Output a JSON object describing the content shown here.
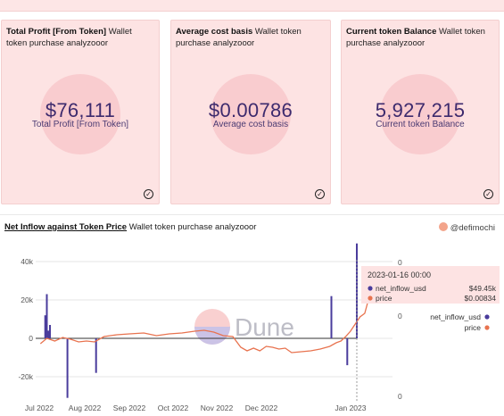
{
  "cards": [
    {
      "title": "Total Profit [From Token]",
      "subtitle": "Wallet token purchase analyzooor",
      "value": "$76,111",
      "label": "Total Profit [From Token]"
    },
    {
      "title": "Average cost basis",
      "subtitle": "Wallet token purchase analyzooor",
      "value": "$0.00786",
      "label": "Average cost basis"
    },
    {
      "title": "Current token Balance",
      "subtitle": "Wallet token purchase analyzooor",
      "value": "5,927,215",
      "label": "Current token Balance"
    }
  ],
  "chart_header": {
    "title": "Net Inflow against Token Price",
    "subtitle": "Wallet token purchase analyzooor",
    "brand": "@defimochi",
    "watermark": "Dune"
  },
  "colors": {
    "bar": "#4a3c9c",
    "line": "#e8734f",
    "card_bg": "#fde3e3"
  },
  "tooltip": {
    "date": "2023-01-16 00:00",
    "rows": [
      {
        "name": "net_inflow_usd",
        "value": "$49.45k"
      },
      {
        "name": "price",
        "value": "$0.00834"
      }
    ]
  },
  "chart_data": {
    "type": "bar",
    "title": "Net Inflow against Token Price",
    "x_ticks": [
      "Jul 2022",
      "Aug 2022",
      "Sep 2022",
      "Oct 2022",
      "Nov 2022",
      "Dec 2022",
      "Jan 2023"
    ],
    "y_ticks": [
      "40k",
      "20k",
      "0",
      "-20k"
    ],
    "y2_ticks": [
      "0",
      "0",
      "0"
    ],
    "ylim": [
      -31000,
      49450
    ],
    "legend": [
      "net_inflow_usd",
      "price"
    ],
    "legend_position": "right",
    "series": [
      {
        "name": "net_inflow_usd",
        "type": "bar",
        "points": [
          {
            "x": "2022-07-04",
            "y": 12000
          },
          {
            "x": "2022-07-05",
            "y": 23000
          },
          {
            "x": "2022-07-06",
            "y": 4000
          },
          {
            "x": "2022-07-07",
            "y": 7000
          },
          {
            "x": "2022-07-18",
            "y": -31000
          },
          {
            "x": "2022-08-05",
            "y": -18000
          },
          {
            "x": "2022-12-31",
            "y": 22000
          },
          {
            "x": "2023-01-10",
            "y": -14000
          },
          {
            "x": "2023-01-16",
            "y": 49450
          }
        ]
      },
      {
        "name": "price",
        "type": "line",
        "points": [
          {
            "x": "2022-07-01",
            "y": -6
          },
          {
            "x": "2022-07-05",
            "y": 0
          },
          {
            "x": "2022-07-10",
            "y": -3
          },
          {
            "x": "2022-07-15",
            "y": 1
          },
          {
            "x": "2022-07-20",
            "y": -1
          },
          {
            "x": "2022-07-25",
            "y": -4
          },
          {
            "x": "2022-07-30",
            "y": -3
          },
          {
            "x": "2022-08-04",
            "y": -4
          },
          {
            "x": "2022-08-10",
            "y": 2
          },
          {
            "x": "2022-08-18",
            "y": 4
          },
          {
            "x": "2022-08-26",
            "y": 5
          },
          {
            "x": "2022-09-04",
            "y": 6
          },
          {
            "x": "2022-09-12",
            "y": 3
          },
          {
            "x": "2022-09-20",
            "y": 5
          },
          {
            "x": "2022-09-28",
            "y": 6
          },
          {
            "x": "2022-10-06",
            "y": 8
          },
          {
            "x": "2022-10-12",
            "y": 9
          },
          {
            "x": "2022-10-18",
            "y": 7
          },
          {
            "x": "2022-10-24",
            "y": 3
          },
          {
            "x": "2022-10-30",
            "y": 2
          },
          {
            "x": "2022-11-04",
            "y": -10
          },
          {
            "x": "2022-11-08",
            "y": -14
          },
          {
            "x": "2022-11-12",
            "y": -11
          },
          {
            "x": "2022-11-16",
            "y": -14
          },
          {
            "x": "2022-11-20",
            "y": -9
          },
          {
            "x": "2022-11-24",
            "y": -10
          },
          {
            "x": "2022-11-28",
            "y": -12
          },
          {
            "x": "2022-12-02",
            "y": -11
          },
          {
            "x": "2022-12-06",
            "y": -16
          },
          {
            "x": "2022-12-12",
            "y": -15
          },
          {
            "x": "2022-12-18",
            "y": -14
          },
          {
            "x": "2022-12-24",
            "y": -12
          },
          {
            "x": "2022-12-30",
            "y": -9
          },
          {
            "x": "2023-01-03",
            "y": -5
          },
          {
            "x": "2023-01-06",
            "y": -3
          },
          {
            "x": "2023-01-09",
            "y": 2
          },
          {
            "x": "2023-01-12",
            "y": 8
          },
          {
            "x": "2023-01-15",
            "y": 16
          },
          {
            "x": "2023-01-18",
            "y": 24
          },
          {
            "x": "2023-01-21",
            "y": 28
          },
          {
            "x": "2023-01-24",
            "y": 48
          }
        ]
      }
    ]
  }
}
